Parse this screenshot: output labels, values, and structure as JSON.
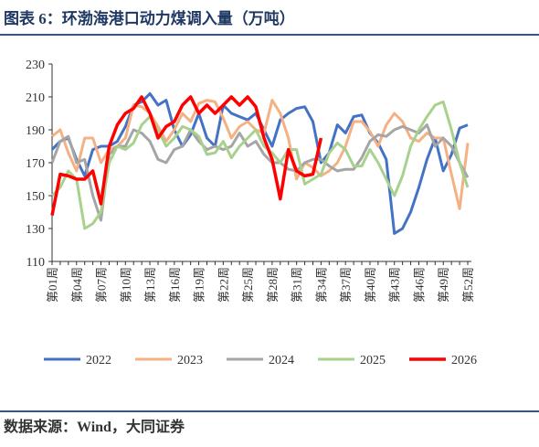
{
  "header": {
    "title": "图表 6：环渤海港口动力煤调入量（万吨）"
  },
  "chart_data": {
    "type": "line",
    "categories": [
      "第01周",
      null,
      null,
      "第04周",
      null,
      null,
      "第07周",
      null,
      null,
      "第10周",
      null,
      null,
      "第13周",
      null,
      null,
      "第16周",
      null,
      null,
      "第19周",
      null,
      null,
      "第22周",
      null,
      null,
      "第25周",
      null,
      null,
      "第28周",
      null,
      null,
      "第31周",
      null,
      null,
      "第34周",
      null,
      null,
      "第37周",
      null,
      null,
      "第40周",
      null,
      null,
      "第43周",
      null,
      null,
      "第46周",
      null,
      null,
      "第49周",
      null,
      null,
      "第52周"
    ],
    "ylim": [
      110,
      230
    ],
    "yticks": [
      110,
      130,
      150,
      170,
      190,
      210,
      230
    ],
    "legend": "bottom",
    "series": [
      {
        "name": "2022",
        "color": "#4472c4",
        "width": 3,
        "values": [
          178,
          183,
          185,
          172,
          162,
          178,
          180,
          180,
          183,
          192,
          205,
          207,
          212,
          205,
          208,
          190,
          180,
          187,
          200,
          185,
          180,
          205,
          200,
          198,
          196,
          200,
          190,
          180,
          196,
          200,
          203,
          204,
          195,
          170,
          176,
          193,
          188,
          198,
          199,
          188,
          182,
          172,
          127,
          130,
          140,
          155,
          172,
          185,
          165,
          175,
          191,
          193
        ]
      },
      {
        "name": "2023",
        "color": "#f4b183",
        "width": 3,
        "values": [
          186,
          190,
          176,
          165,
          185,
          185,
          170,
          178,
          180,
          185,
          205,
          204,
          200,
          192,
          183,
          190,
          200,
          195,
          206,
          208,
          207,
          197,
          185,
          192,
          195,
          190,
          188,
          208,
          200,
          185,
          160,
          170,
          167,
          162,
          165,
          170,
          180,
          195,
          195,
          189,
          180,
          193,
          200,
          195,
          185,
          183,
          188,
          185,
          185,
          163,
          142,
          182
        ]
      },
      {
        "name": "2024",
        "color": "#a5a5a5",
        "width": 3,
        "values": [
          170,
          183,
          186,
          170,
          172,
          150,
          135,
          175,
          180,
          180,
          190,
          188,
          183,
          172,
          170,
          178,
          180,
          190,
          183,
          178,
          180,
          178,
          180,
          188,
          180,
          183,
          175,
          170,
          170,
          166,
          165,
          170,
          172,
          172,
          168,
          165,
          166,
          166,
          173,
          183,
          187,
          186,
          190,
          192,
          190,
          188,
          193,
          180,
          185,
          180,
          170,
          161
        ]
      },
      {
        "name": "2025",
        "color": "#a9d18e",
        "width": 3,
        "values": [
          150,
          155,
          165,
          160,
          130,
          133,
          140,
          170,
          180,
          178,
          182,
          193,
          198,
          190,
          180,
          185,
          192,
          190,
          186,
          175,
          176,
          183,
          173,
          180,
          185,
          190,
          180,
          176,
          170,
          178,
          178,
          157,
          160,
          163,
          176,
          182,
          178,
          168,
          168,
          178,
          170,
          160,
          150,
          162,
          180,
          190,
          198,
          205,
          207,
          190,
          170,
          155
        ]
      },
      {
        "name": "2026",
        "color": "#ff0000",
        "width": 3.5,
        "values": [
          138,
          163,
          162,
          160,
          160,
          165,
          145,
          180,
          193,
          200,
          203,
          210,
          200,
          185,
          192,
          195,
          205,
          210,
          200,
          205,
          200,
          205,
          210,
          205,
          210,
          204,
          185,
          172,
          148,
          178,
          165,
          162,
          163,
          185,
          null,
          null,
          null,
          null,
          null,
          null,
          null,
          null,
          null,
          null,
          null,
          null,
          null,
          null,
          null,
          null,
          null,
          null
        ]
      }
    ]
  },
  "footer": {
    "source": "数据来源：Wind，大同证券"
  }
}
